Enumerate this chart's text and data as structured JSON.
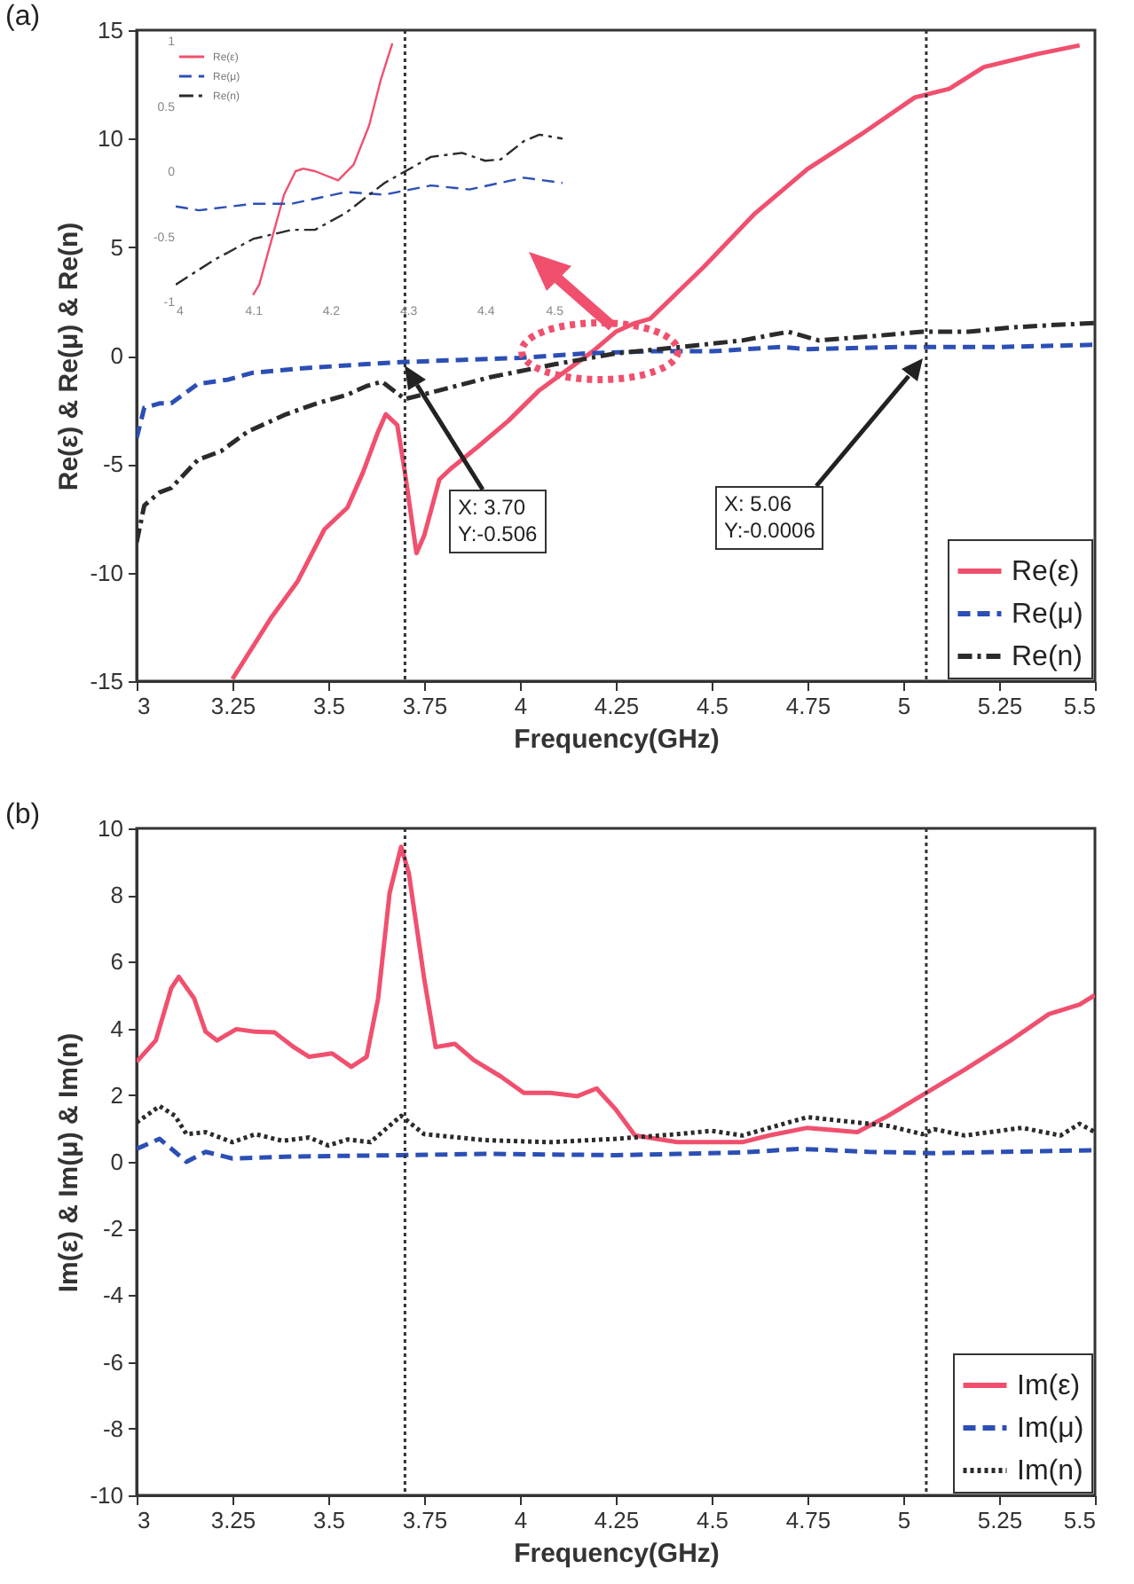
{
  "chart_data": [
    {
      "type": "line",
      "title": "(a)",
      "xlabel": "Frequency(GHz)",
      "ylabel": "Re(ε) & Re(μ) & Re(n)",
      "xlim": [
        3,
        5.5
      ],
      "xticks": [
        3,
        3.25,
        3.5,
        3.75,
        4,
        4.25,
        4.5,
        4.75,
        5,
        5.25,
        5.5
      ],
      "ylim": [
        -15,
        15
      ],
      "yticks": [
        -15,
        -10,
        -5,
        0,
        5,
        10,
        15
      ],
      "legend": "bottom right",
      "series": [
        {
          "name": "Re(ε)",
          "color": "#f0506e",
          "line_style": "solid",
          "x": [
            3.25,
            3.35,
            3.42,
            3.49,
            3.55,
            3.59,
            3.63,
            3.65,
            3.68,
            3.7,
            3.73,
            3.75,
            3.79,
            3.82,
            3.89,
            3.97,
            4.05,
            4.12,
            4.19,
            4.25,
            4.3,
            4.34,
            4.48,
            4.61,
            4.75,
            4.89,
            5.03,
            5.12,
            5.21,
            5.35,
            5.46
          ],
          "values": [
            -14.9,
            -12.1,
            -10.4,
            -8.0,
            -7.0,
            -5.4,
            -3.5,
            -2.7,
            -3.2,
            -5.4,
            -9.1,
            -8.3,
            -5.7,
            -5.2,
            -4.2,
            -3.0,
            -1.6,
            -0.7,
            0.2,
            1.1,
            1.5,
            1.7,
            4.1,
            6.5,
            8.6,
            10.2,
            11.9,
            12.3,
            13.3,
            13.9,
            14.3
          ]
        },
        {
          "name": "Re(μ)",
          "color": "#2c4fb5",
          "line_style": "dashed",
          "x": [
            3.0,
            3.02,
            3.06,
            3.09,
            3.16,
            3.24,
            3.3,
            3.42,
            3.59,
            3.69,
            3.84,
            4.0,
            4.17,
            4.33,
            4.5,
            4.68,
            4.75,
            5.0,
            5.25,
            5.5
          ],
          "values": [
            -3.8,
            -2.4,
            -2.2,
            -2.2,
            -1.3,
            -1.1,
            -0.8,
            -0.6,
            -0.4,
            -0.3,
            -0.2,
            -0.1,
            0.1,
            0.2,
            0.2,
            0.4,
            0.3,
            0.4,
            0.4,
            0.5
          ]
        },
        {
          "name": "Re(n)",
          "color": "#2b2b2b",
          "line_style": "dashdot",
          "x": [
            3.0,
            3.02,
            3.06,
            3.09,
            3.16,
            3.22,
            3.29,
            3.39,
            3.47,
            3.55,
            3.6,
            3.64,
            3.67,
            3.7,
            3.79,
            3.92,
            4.09,
            4.25,
            4.42,
            4.58,
            4.7,
            4.78,
            4.92,
            5.05,
            5.17,
            5.28,
            5.38,
            5.5
          ],
          "values": [
            -8.6,
            -6.9,
            -6.3,
            -6.1,
            -4.8,
            -4.4,
            -3.5,
            -2.7,
            -2.2,
            -1.8,
            -1.4,
            -1.2,
            -1.6,
            -2.0,
            -1.6,
            -1.0,
            -0.4,
            0.1,
            0.4,
            0.7,
            1.1,
            0.7,
            0.9,
            1.1,
            1.1,
            1.3,
            1.4,
            1.5
          ]
        }
      ],
      "ref_lines": [
        {
          "axis": "x",
          "value": 3.7,
          "color": "#333333",
          "line_style": "dotted"
        },
        {
          "axis": "x",
          "value": 5.06,
          "color": "#333333",
          "line_style": "dotted"
        }
      ],
      "annotations": [
        "X: 3.70\nY:-0.506",
        "X: 5.06\nY:-0.0006"
      ]
    },
    {
      "type": "line",
      "xlim": [
        4,
        4.5
      ],
      "xticks": [
        4,
        4.1,
        4.2,
        4.3,
        4.4,
        4.5
      ],
      "ylim": [
        -1,
        1
      ],
      "yticks": [
        -1,
        -0.5,
        0,
        0.5,
        1
      ],
      "legend": "top left",
      "series": [
        {
          "name": "Re(ε)",
          "color": "#f0506e",
          "line_style": "solid",
          "x": [
            4.1,
            4.108,
            4.14,
            4.155,
            4.165,
            4.18,
            4.21,
            4.23,
            4.25,
            4.265,
            4.28
          ],
          "values": [
            -0.95,
            -0.87,
            -0.18,
            0.0,
            0.02,
            0.0,
            -0.07,
            0.05,
            0.35,
            0.7,
            0.98
          ]
        },
        {
          "name": "Re(μ)",
          "color": "#2c4fb5",
          "line_style": "dashed",
          "x": [
            4.0,
            4.03,
            4.1,
            4.15,
            4.22,
            4.27,
            4.33,
            4.38,
            4.45,
            4.5
          ],
          "values": [
            -0.27,
            -0.3,
            -0.25,
            -0.25,
            -0.16,
            -0.18,
            -0.11,
            -0.14,
            -0.05,
            -0.09
          ]
        },
        {
          "name": "Re(n)",
          "color": "#2b2b2b",
          "line_style": "dashdot",
          "x": [
            4.0,
            4.05,
            4.1,
            4.15,
            4.18,
            4.22,
            4.27,
            4.33,
            4.37,
            4.4,
            4.42,
            4.45,
            4.47,
            4.5
          ],
          "values": [
            -0.87,
            -0.68,
            -0.52,
            -0.45,
            -0.45,
            -0.32,
            -0.09,
            0.11,
            0.14,
            0.08,
            0.09,
            0.23,
            0.28,
            0.25
          ]
        }
      ]
    },
    {
      "type": "line",
      "title": "(b)",
      "xlabel": "Frequency(GHz)",
      "ylabel": "Im(ε) & Im(μ) & Im(n)",
      "xlim": [
        3,
        5.5
      ],
      "xticks": [
        3,
        3.25,
        3.5,
        3.75,
        4,
        4.25,
        4.5,
        4.75,
        5,
        5.25,
        5.5
      ],
      "ylim": [
        -10,
        10
      ],
      "yticks": [
        -10,
        -8,
        -6,
        -4,
        -2,
        0,
        2,
        4,
        6,
        8,
        10
      ],
      "legend": "bottom right",
      "series": [
        {
          "name": "Im(ε)",
          "color": "#f0506e",
          "line_style": "solid",
          "x": [
            3.0,
            3.05,
            3.09,
            3.11,
            3.15,
            3.18,
            3.21,
            3.26,
            3.31,
            3.36,
            3.41,
            3.45,
            3.51,
            3.56,
            3.6,
            3.63,
            3.66,
            3.69,
            3.71,
            3.75,
            3.78,
            3.83,
            3.88,
            3.95,
            4.01,
            4.08,
            4.15,
            4.2,
            4.25,
            4.3,
            4.41,
            4.58,
            4.65,
            4.75,
            4.88,
            4.96,
            5.06,
            5.16,
            5.28,
            5.38,
            5.46,
            5.5
          ],
          "values": [
            3.0,
            3.64,
            5.2,
            5.55,
            4.9,
            3.9,
            3.64,
            3.98,
            3.9,
            3.88,
            3.44,
            3.15,
            3.25,
            2.85,
            3.15,
            4.9,
            8.07,
            9.45,
            8.66,
            5.5,
            3.44,
            3.54,
            3.05,
            2.56,
            2.07,
            2.07,
            1.97,
            2.2,
            1.57,
            0.79,
            0.59,
            0.59,
            0.79,
            1.02,
            0.89,
            1.38,
            2.07,
            2.76,
            3.64,
            4.43,
            4.72,
            5.0
          ]
        },
        {
          "name": "Im(μ)",
          "color": "#2c4fb5",
          "line_style": "dashed",
          "x": [
            3.0,
            3.06,
            3.1,
            3.13,
            3.18,
            3.25,
            3.41,
            3.69,
            3.91,
            4.25,
            4.58,
            4.73,
            4.91,
            5.08,
            5.5
          ],
          "values": [
            0.39,
            0.69,
            0.3,
            0.0,
            0.3,
            0.1,
            0.16,
            0.2,
            0.24,
            0.2,
            0.28,
            0.39,
            0.3,
            0.26,
            0.35
          ]
        },
        {
          "name": "Im(n)",
          "color": "#2b2b2b",
          "line_style": "dotted",
          "x": [
            3.0,
            3.06,
            3.1,
            3.13,
            3.18,
            3.25,
            3.31,
            3.38,
            3.45,
            3.5,
            3.55,
            3.61,
            3.69,
            3.75,
            3.91,
            4.08,
            4.25,
            4.41,
            4.5,
            4.58,
            4.75,
            4.88,
            4.96,
            5.05,
            5.08,
            5.16,
            5.31,
            5.41,
            5.46,
            5.5
          ],
          "values": [
            1.18,
            1.67,
            1.38,
            0.83,
            0.89,
            0.59,
            0.83,
            0.63,
            0.73,
            0.49,
            0.67,
            0.59,
            1.38,
            0.83,
            0.65,
            0.59,
            0.69,
            0.83,
            0.93,
            0.79,
            1.34,
            1.18,
            1.08,
            0.83,
            0.98,
            0.79,
            1.02,
            0.79,
            1.14,
            0.89
          ]
        }
      ],
      "ref_lines": [
        {
          "axis": "x",
          "value": 3.7,
          "color": "#333333",
          "line_style": "dotted"
        },
        {
          "axis": "x",
          "value": 5.06,
          "color": "#333333",
          "line_style": "dotted"
        }
      ]
    }
  ]
}
